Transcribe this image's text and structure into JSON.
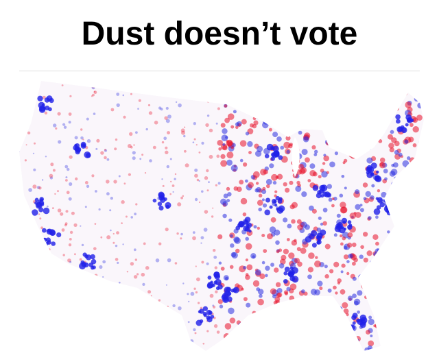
{
  "title": "Dust doesn’t vote"
}
